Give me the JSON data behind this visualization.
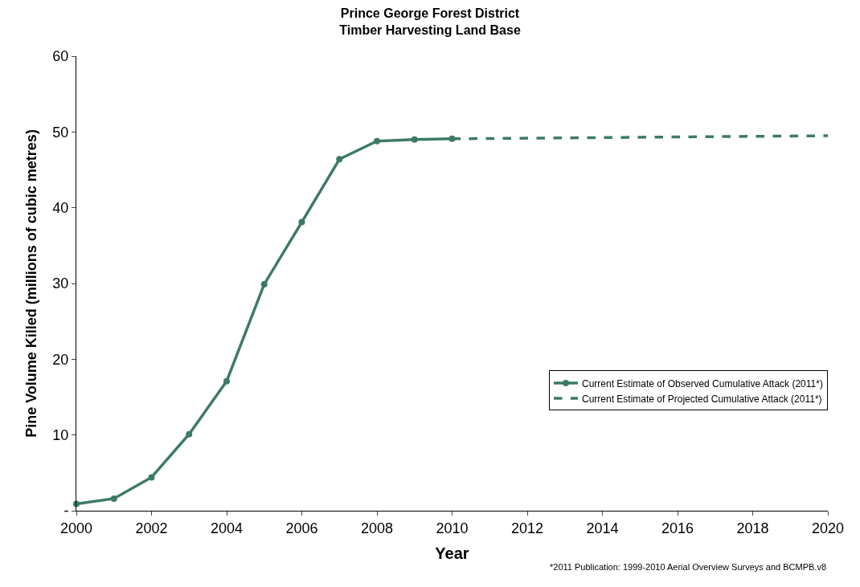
{
  "chart_data": {
    "type": "line",
    "title": "Prince George Forest District\nTimber Harvesting Land Base",
    "xlabel": "Year",
    "ylabel": "Pine Volume Killed (millions of cubic metres)",
    "annotations": [
      "*2011 Publication: 1999-2010 Aerial Overview Surveys and BCMPB.v8"
    ],
    "series": [
      {
        "name": "Current Estimate of Observed Cumulative Attack (2011*)",
        "color": "#3d7a66",
        "marker": "circle",
        "line_style": "solid",
        "x": [
          2000,
          2001,
          2002,
          2003,
          2004,
          2005,
          2006,
          2007,
          2008,
          2009,
          2010
        ],
        "values": [
          0.9,
          1.6,
          4.4,
          10.1,
          17.1,
          29.9,
          38.1,
          46.4,
          48.8,
          49.0,
          49.1
        ]
      },
      {
        "name": "Current Estimate of Projected Cumulative Attack (2011*)",
        "color": "#3d7a66",
        "marker": "none",
        "line_style": "dashed",
        "x": [
          2010,
          2020
        ],
        "values": [
          49.1,
          49.5
        ]
      }
    ],
    "xlim": [
      2000,
      2020
    ],
    "xticks": [
      2000,
      2002,
      2004,
      2006,
      2008,
      2010,
      2012,
      2014,
      2016,
      2018,
      2020
    ],
    "ylim": [
      0,
      60
    ],
    "yticks": [
      {
        "value": 0,
        "label": "-"
      },
      10,
      20,
      30,
      40,
      50,
      60
    ],
    "legend": "bottom right"
  }
}
